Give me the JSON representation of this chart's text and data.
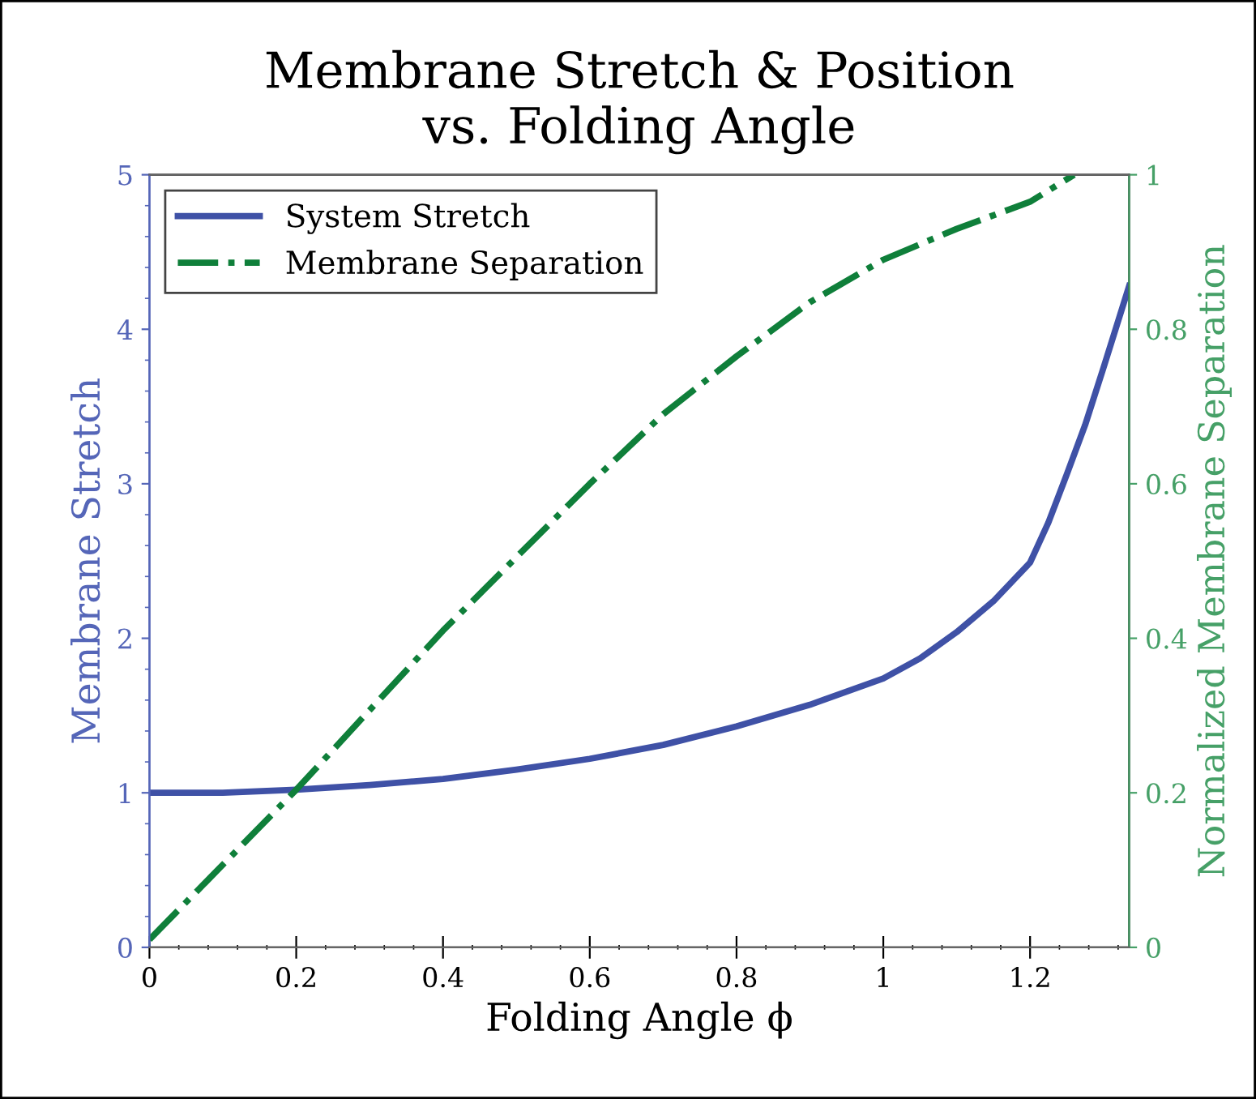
{
  "chart_data": {
    "type": "line",
    "title": "Membrane Stretch & Position\nvs. Folding Angle",
    "xlabel": "Folding Angle ϕ",
    "ylabel": "Membrane Stretch",
    "y2label": "Normalized Membrane Separation",
    "xlim": [
      0,
      1.335
    ],
    "xticks": [
      0,
      0.2,
      0.4,
      0.6,
      0.8,
      1,
      1.2
    ],
    "ylim": [
      0,
      5
    ],
    "yticks": [
      0,
      1,
      2,
      3,
      4,
      5
    ],
    "y2lim": [
      0,
      1
    ],
    "y2ticks": [
      0,
      0.2,
      0.4,
      0.6,
      0.8,
      1
    ],
    "legend": "top left",
    "grid": false,
    "series": [
      {
        "name": "System Stretch",
        "color": "#3f51a6",
        "line_style": "solid",
        "x": [
          0,
          0.1,
          0.2,
          0.3,
          0.4,
          0.5,
          0.6,
          0.7,
          0.8,
          0.9,
          1.0,
          1.05,
          1.1,
          1.15,
          1.2,
          1.225,
          1.25,
          1.275,
          1.3,
          1.335
        ],
        "values": [
          1,
          1.0,
          1.02,
          1.05,
          1.09,
          1.15,
          1.22,
          1.31,
          1.43,
          1.57,
          1.74,
          1.87,
          2.04,
          2.24,
          2.49,
          2.75,
          3.06,
          3.38,
          3.75,
          4.28
        ]
      },
      {
        "name": "Membrane Separation",
        "color": "#0f7f3a",
        "line_style": "dashdot",
        "axis": "y2",
        "x": [
          0,
          0.2,
          0.4,
          0.6,
          0.7,
          0.8,
          0.9,
          1.0,
          1.1,
          1.2,
          1.26
        ],
        "values": [
          0.01,
          0.204,
          0.41,
          0.6,
          0.69,
          0.765,
          0.835,
          0.89,
          0.93,
          0.965,
          1.0
        ]
      }
    ]
  }
}
